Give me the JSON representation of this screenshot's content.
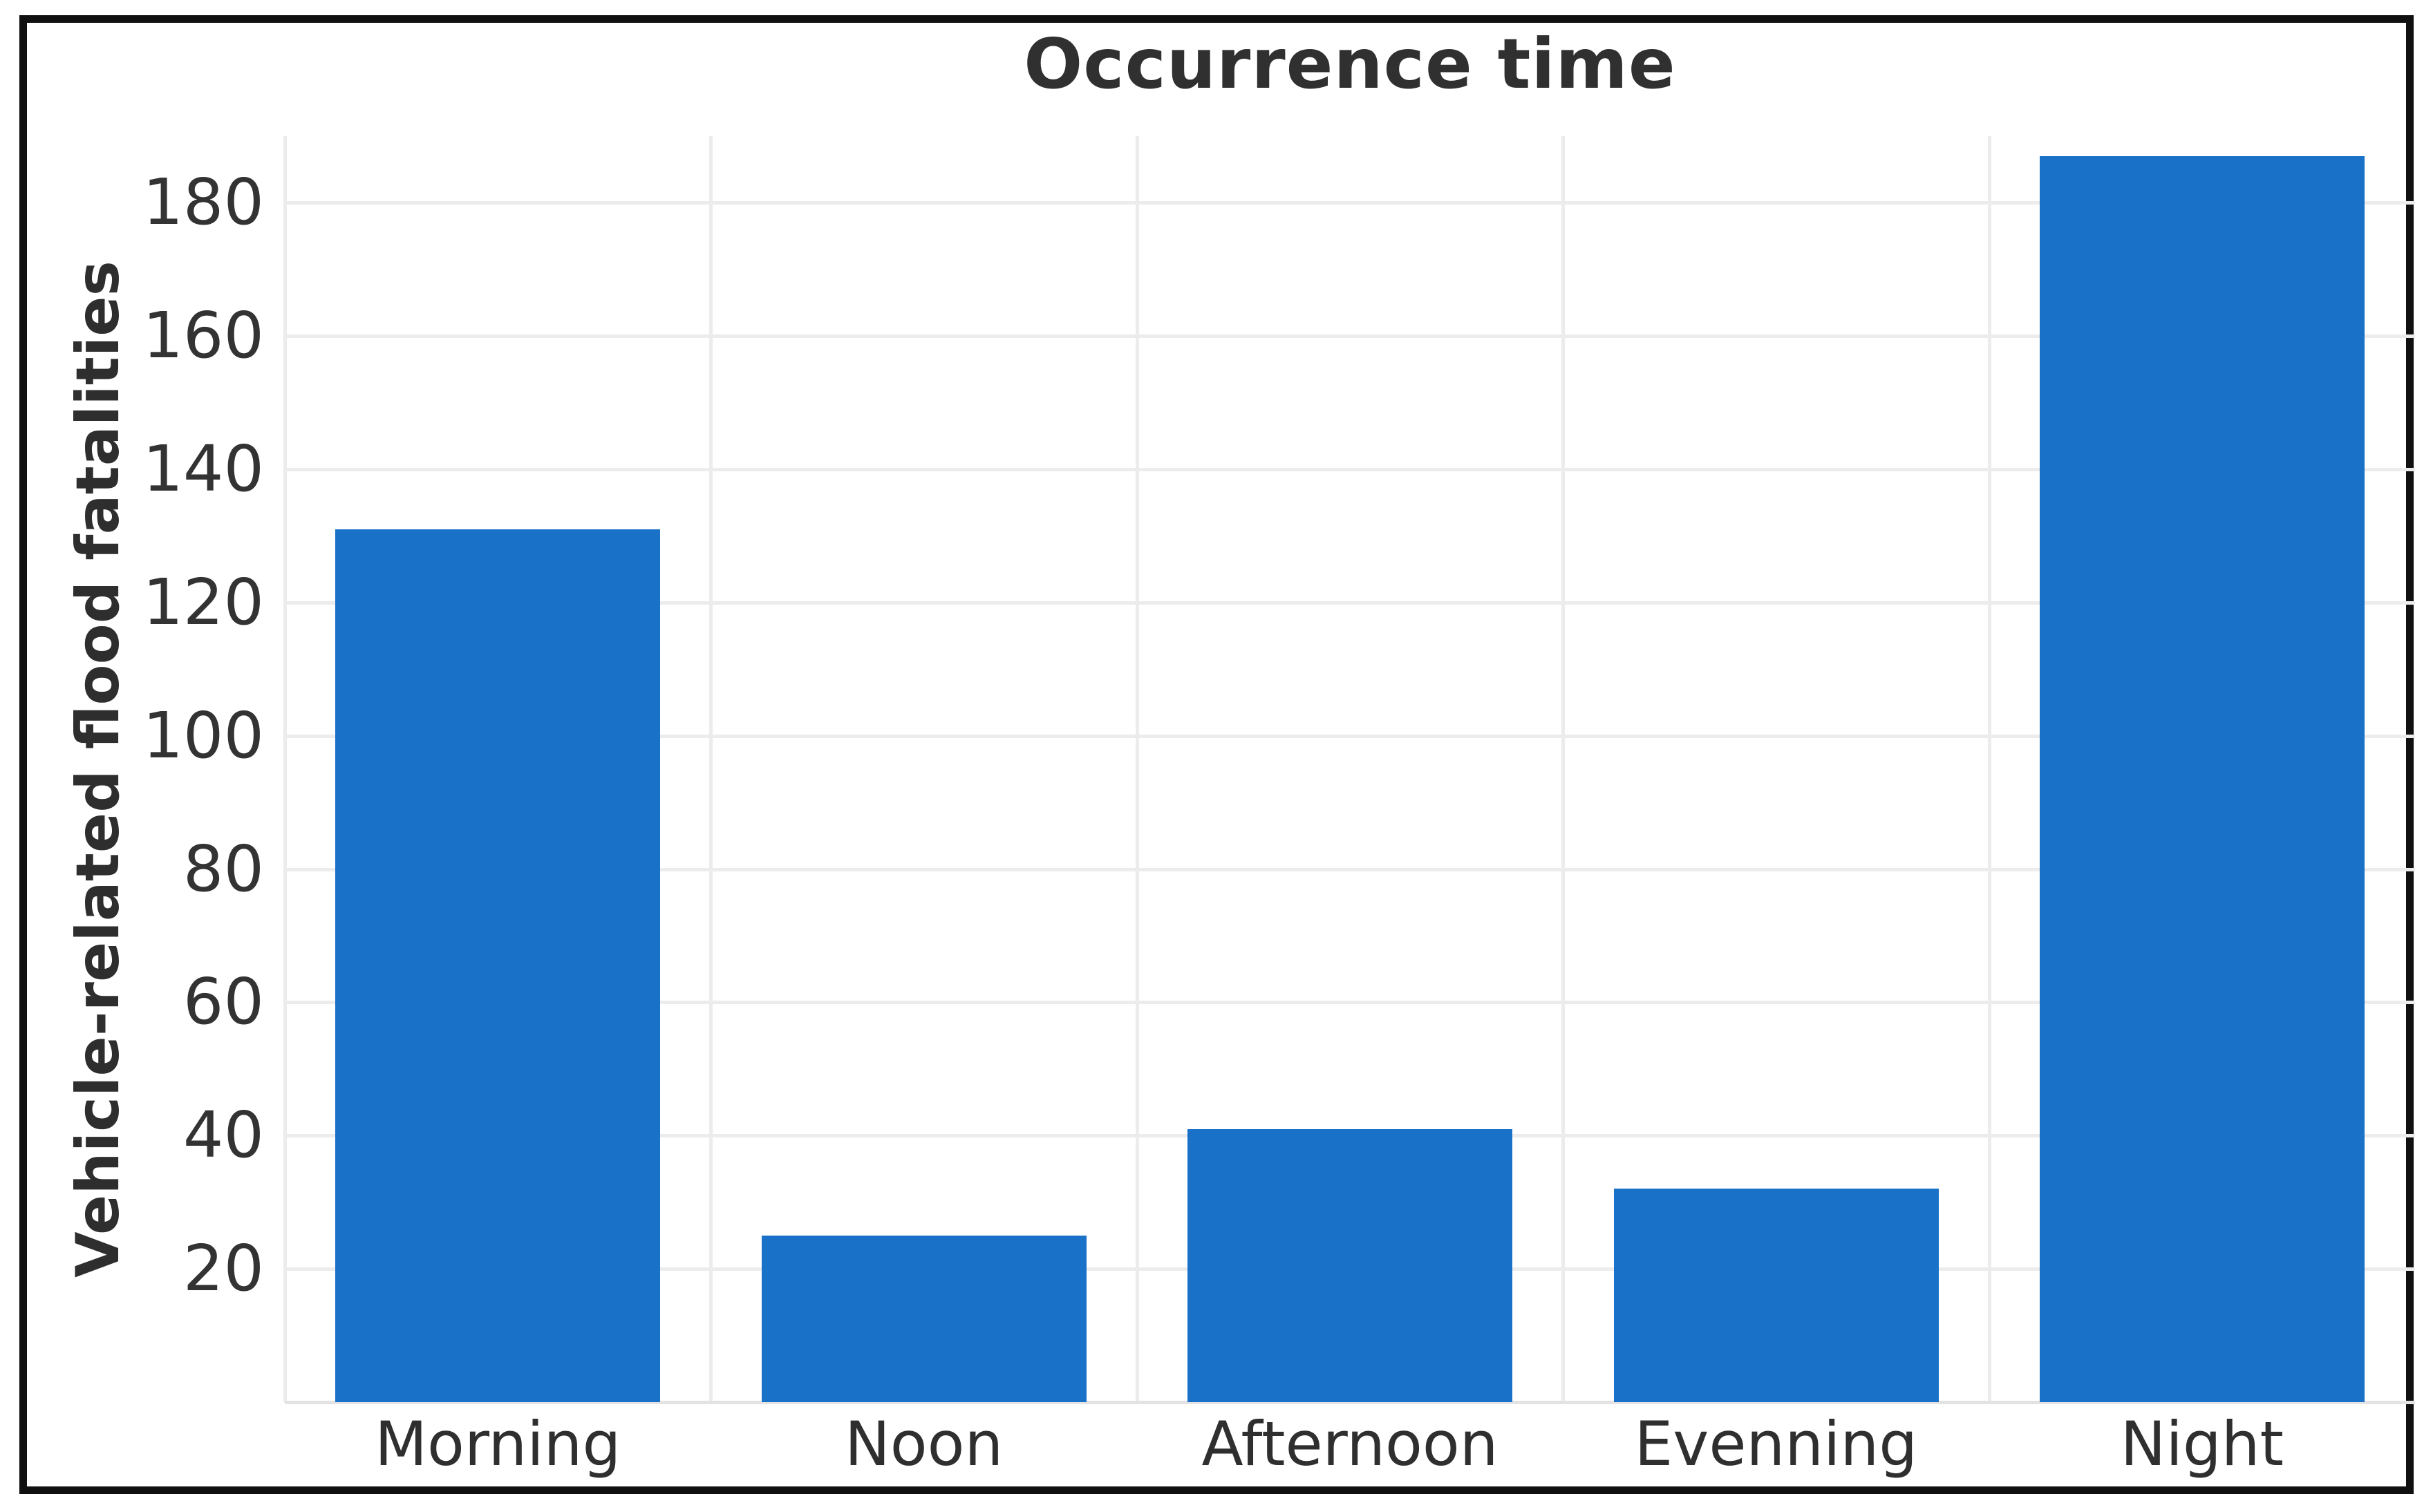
{
  "page": {
    "background_color": "#ffffff",
    "frame_color": "#101010"
  },
  "chart_data": {
    "type": "bar",
    "title": "Occurrence time",
    "xlabel": "",
    "ylabel": "Vehicle-related flood fatalities",
    "categories": [
      "Morning",
      "Noon",
      "Afternoon",
      "Evenning",
      "Night"
    ],
    "values": [
      131,
      25,
      41,
      32,
      187
    ],
    "yticks": [
      20,
      40,
      60,
      80,
      100,
      120,
      140,
      160,
      180
    ],
    "ylim": [
      0,
      190
    ],
    "grid": "on",
    "legend": "none",
    "bar_color": "#1971c8",
    "gridline_color": "#ececec",
    "title_color": "#303030",
    "tick_label_color": "#333333"
  }
}
